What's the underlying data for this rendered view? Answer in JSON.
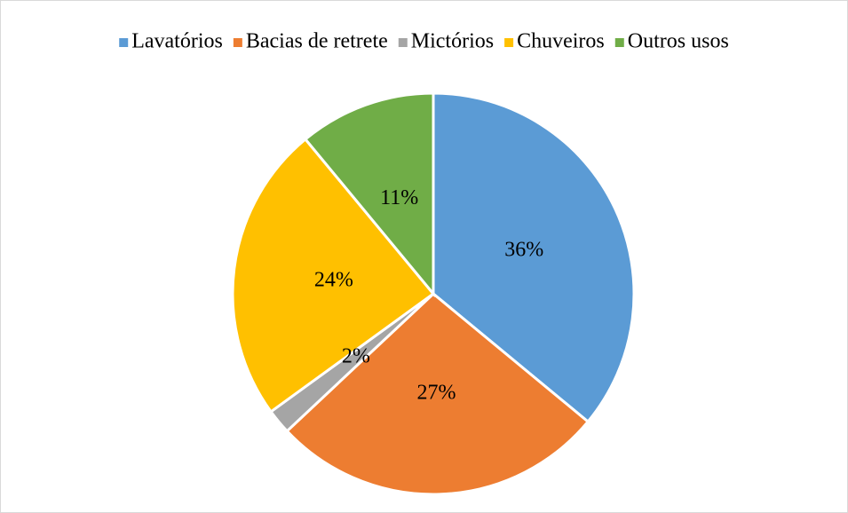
{
  "chart_data": {
    "type": "pie",
    "categories": [
      "Lavatórios",
      "Bacias de retrete",
      "Mictórios",
      "Chuveiros",
      "Outros usos"
    ],
    "values": [
      36,
      27,
      2,
      24,
      11
    ],
    "value_labels": [
      "36%",
      "27%",
      "2%",
      "24%",
      "11%"
    ],
    "colors": [
      "#5b9bd5",
      "#ed7d31",
      "#a5a5a5",
      "#ffc000",
      "#70ad47"
    ],
    "legend": "top"
  }
}
